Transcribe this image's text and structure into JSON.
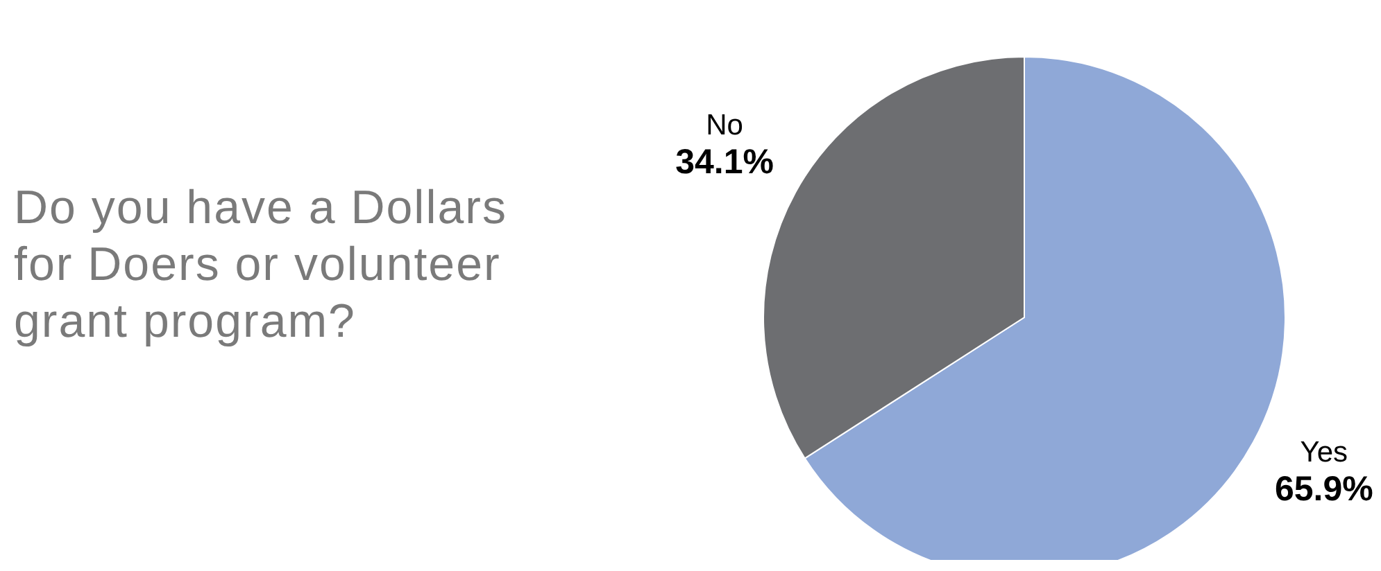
{
  "chart_data": {
    "type": "pie",
    "title": "Do you have a Dollars for Doers or volunteer grant program?",
    "categories": [
      "Yes",
      "No"
    ],
    "values": [
      65.9,
      34.1
    ],
    "colors": [
      "#8fa8d7",
      "#6d6e71"
    ],
    "value_labels": [
      "65.9%",
      "34.1%"
    ]
  }
}
